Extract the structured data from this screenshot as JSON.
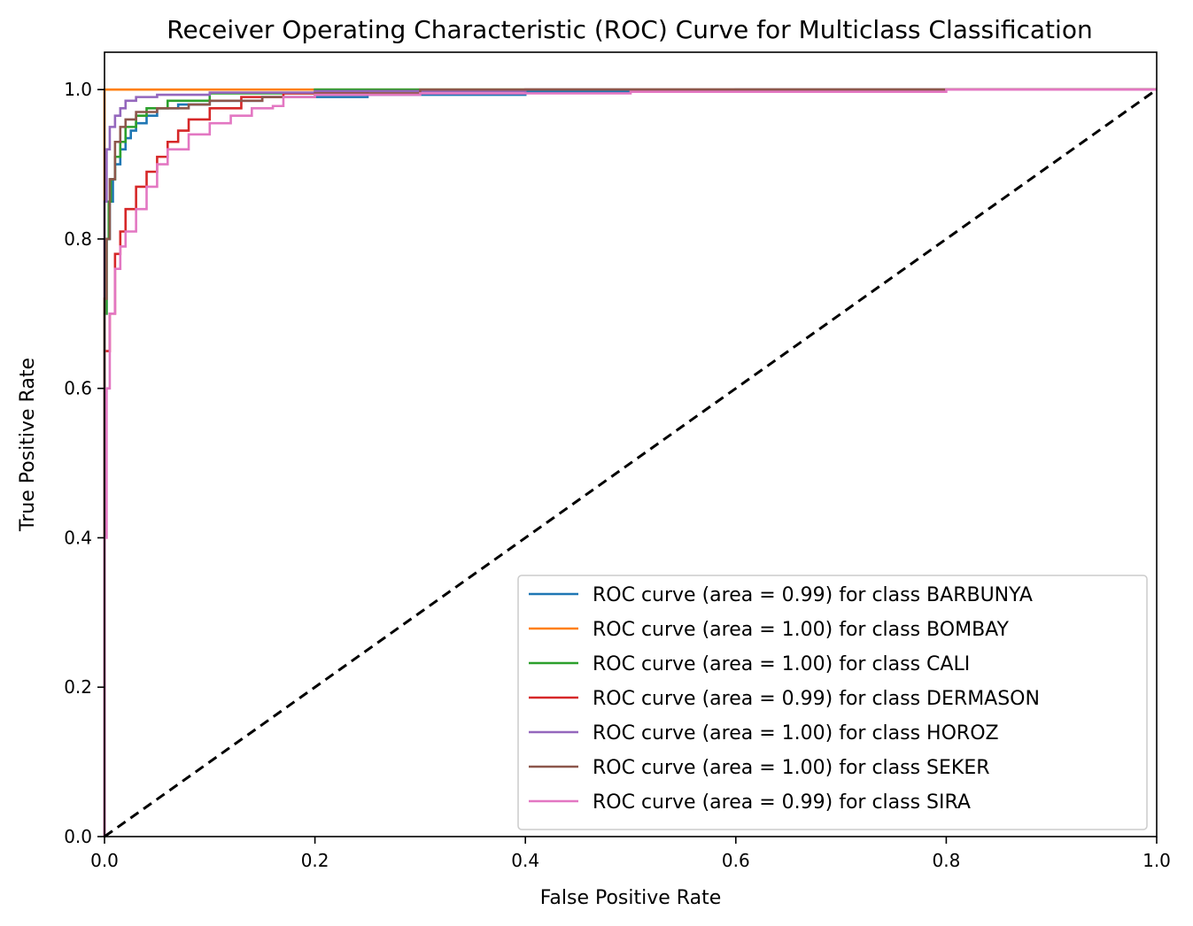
{
  "chart_data": {
    "type": "line",
    "title": "Receiver Operating Characteristic (ROC) Curve for Multiclass Classification",
    "xlabel": "False Positive Rate",
    "ylabel": "True Positive Rate",
    "xlim": [
      0.0,
      1.0
    ],
    "ylim": [
      0.0,
      1.05
    ],
    "x_ticks": [
      0.0,
      0.2,
      0.4,
      0.6,
      0.8,
      1.0
    ],
    "x_tick_labels": [
      "0.0",
      "0.2",
      "0.4",
      "0.6",
      "0.8",
      "1.0"
    ],
    "y_ticks": [
      0.0,
      0.2,
      0.4,
      0.6,
      0.8,
      1.0
    ],
    "y_tick_labels": [
      "0.0",
      "0.2",
      "0.4",
      "0.6",
      "0.8",
      "1.0"
    ],
    "grid": false,
    "legend_position": "lower-right",
    "series": [
      {
        "name": "ROC curve (area = 0.99) for class BARBUNYA",
        "color": "#1f77b4",
        "x": [
          0.0,
          0.0,
          0.002,
          0.005,
          0.008,
          0.01,
          0.015,
          0.02,
          0.025,
          0.03,
          0.04,
          0.05,
          0.07,
          0.1,
          0.15,
          0.25,
          0.4,
          0.6,
          1.0
        ],
        "y": [
          0.0,
          0.7,
          0.8,
          0.85,
          0.88,
          0.9,
          0.92,
          0.935,
          0.945,
          0.955,
          0.965,
          0.975,
          0.98,
          0.985,
          0.99,
          0.993,
          0.997,
          1.0,
          1.0
        ]
      },
      {
        "name": "ROC curve (area = 1.00) for class BOMBAY",
        "color": "#ff7f0e",
        "x": [
          0.0,
          0.0,
          1.0
        ],
        "y": [
          0.0,
          1.0,
          1.0
        ]
      },
      {
        "name": "ROC curve (area = 1.00) for class CALI",
        "color": "#2ca02c",
        "x": [
          0.0,
          0.0,
          0.002,
          0.004,
          0.006,
          0.01,
          0.015,
          0.02,
          0.03,
          0.04,
          0.06,
          0.1,
          0.2,
          1.0
        ],
        "y": [
          0.0,
          0.7,
          0.8,
          0.85,
          0.88,
          0.91,
          0.93,
          0.95,
          0.965,
          0.975,
          0.985,
          0.995,
          1.0,
          1.0
        ]
      },
      {
        "name": "ROC curve (area = 0.99) for class DERMASON",
        "color": "#d62728",
        "x": [
          0.0,
          0.0,
          0.005,
          0.01,
          0.015,
          0.02,
          0.03,
          0.04,
          0.05,
          0.06,
          0.07,
          0.08,
          0.1,
          0.13,
          0.17,
          0.25,
          0.4,
          1.0
        ],
        "y": [
          0.0,
          0.65,
          0.7,
          0.78,
          0.81,
          0.84,
          0.87,
          0.89,
          0.91,
          0.93,
          0.945,
          0.96,
          0.975,
          0.99,
          0.995,
          0.998,
          1.0,
          1.0
        ]
      },
      {
        "name": "ROC curve (area = 1.00) for class HOROZ",
        "color": "#9467bd",
        "x": [
          0.0,
          0.0,
          0.002,
          0.005,
          0.01,
          0.015,
          0.02,
          0.03,
          0.05,
          0.1,
          0.2,
          0.4,
          1.0
        ],
        "y": [
          0.0,
          0.85,
          0.92,
          0.95,
          0.965,
          0.975,
          0.985,
          0.99,
          0.993,
          0.996,
          0.998,
          1.0,
          1.0
        ]
      },
      {
        "name": "ROC curve (area = 1.00) for class SEKER",
        "color": "#8c564b",
        "x": [
          0.0,
          0.0,
          0.002,
          0.005,
          0.01,
          0.015,
          0.02,
          0.03,
          0.05,
          0.08,
          0.1,
          0.15,
          0.2,
          0.3,
          1.0
        ],
        "y": [
          0.0,
          0.72,
          0.8,
          0.88,
          0.93,
          0.95,
          0.96,
          0.97,
          0.975,
          0.98,
          0.985,
          0.99,
          0.995,
          1.0,
          1.0
        ]
      },
      {
        "name": "ROC curve (area = 0.99) for class SIRA",
        "color": "#e377c2",
        "x": [
          0.0,
          0.0,
          0.002,
          0.005,
          0.01,
          0.015,
          0.02,
          0.03,
          0.04,
          0.05,
          0.06,
          0.08,
          0.1,
          0.12,
          0.14,
          0.16,
          0.17,
          0.2,
          0.3,
          0.5,
          0.8,
          1.0
        ],
        "y": [
          0.0,
          0.4,
          0.6,
          0.7,
          0.76,
          0.79,
          0.81,
          0.84,
          0.87,
          0.9,
          0.92,
          0.94,
          0.955,
          0.965,
          0.975,
          0.978,
          0.99,
          0.993,
          0.995,
          0.997,
          1.0,
          1.0
        ]
      },
      {
        "name": "",
        "color": "#000000",
        "dashed": true,
        "x": [
          0.0,
          1.0
        ],
        "y": [
          0.0,
          1.0
        ]
      }
    ]
  }
}
